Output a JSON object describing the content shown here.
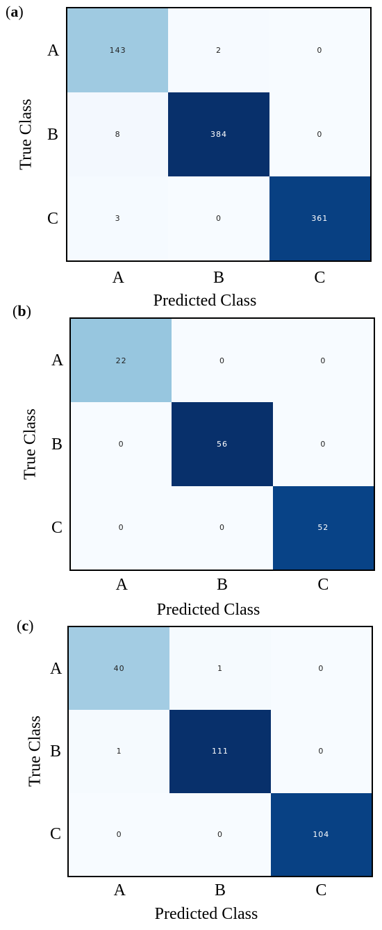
{
  "colors": {
    "low": "#f7fbff",
    "mid": "#9ecae1",
    "high": "#08306b",
    "border": "#000000"
  },
  "chart_data": [
    {
      "type": "heatmap",
      "panel_label": "a",
      "xlabel": "Predicted Class",
      "ylabel": "True Class",
      "x_categories": [
        "A",
        "B",
        "C"
      ],
      "y_categories": [
        "A",
        "B",
        "C"
      ],
      "values": [
        [
          143,
          2,
          0
        ],
        [
          8,
          384,
          0
        ],
        [
          3,
          0,
          361
        ]
      ]
    },
    {
      "type": "heatmap",
      "panel_label": "b",
      "xlabel": "Predicted Class",
      "ylabel": "True Class",
      "x_categories": [
        "A",
        "B",
        "C"
      ],
      "y_categories": [
        "A",
        "B",
        "C"
      ],
      "values": [
        [
          22,
          0,
          0
        ],
        [
          0,
          56,
          0
        ],
        [
          0,
          0,
          52
        ]
      ]
    },
    {
      "type": "heatmap",
      "panel_label": "c",
      "xlabel": "Predicted Class",
      "ylabel": "True Class",
      "x_categories": [
        "A",
        "B",
        "C"
      ],
      "y_categories": [
        "A",
        "B",
        "C"
      ],
      "values": [
        [
          40,
          1,
          0
        ],
        [
          1,
          111,
          0
        ],
        [
          0,
          0,
          104
        ]
      ]
    }
  ]
}
